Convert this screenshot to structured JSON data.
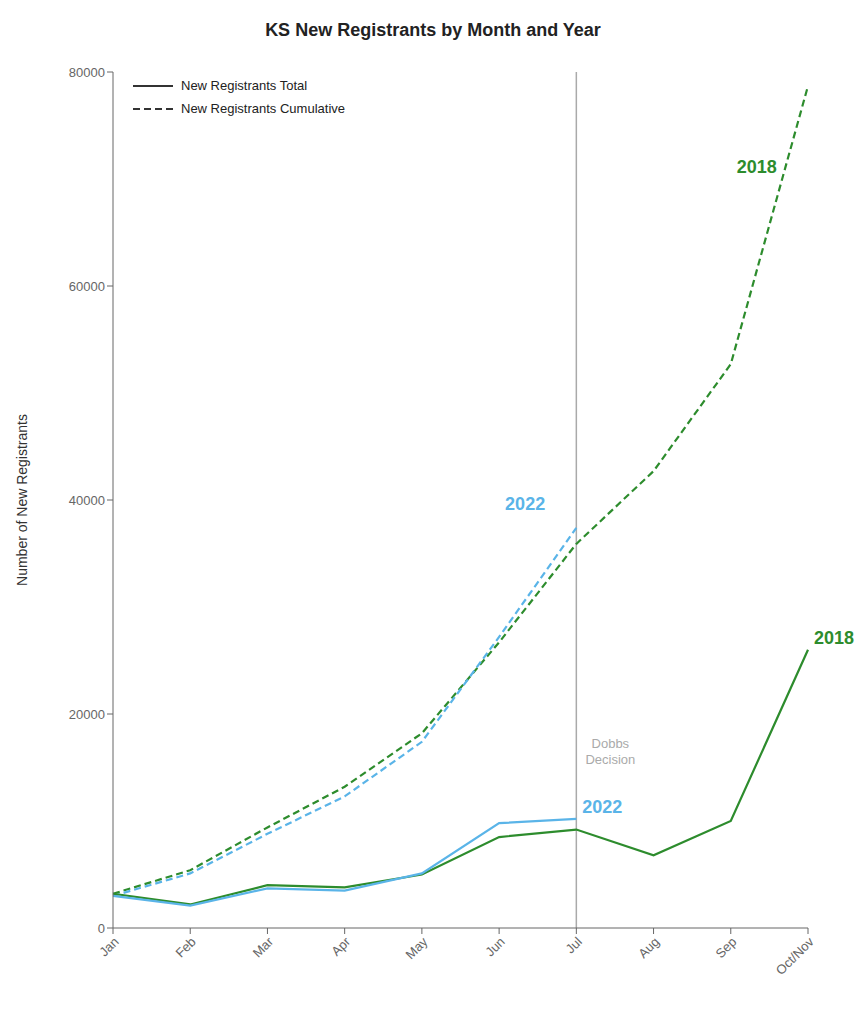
{
  "chart_data": {
    "type": "line",
    "title": "KS New Registrants by Month and Year",
    "y_label": "Number of New Registrants",
    "categories": [
      "Jan",
      "Feb",
      "Mar",
      "Apr",
      "May",
      "Jun",
      "Jul",
      "Aug",
      "Sep",
      "Oct/Nov"
    ],
    "series": [
      {
        "color": "#2d8c2d",
        "line_style": "dashed",
        "values": [
          3200,
          5400,
          9400,
          13200,
          18200,
          26700,
          35900,
          42700,
          52700,
          78700
        ]
      },
      {
        "color": "#5ab4e8",
        "line_style": "dashed",
        "values": [
          3000,
          5100,
          8800,
          12300,
          17400,
          27200,
          37400,
          null,
          null,
          null
        ]
      },
      {
        "color": "#2d8c2d",
        "line_style": "solid",
        "values": [
          3200,
          2200,
          4000,
          3800,
          5000,
          8500,
          9200,
          6800,
          10000,
          26000
        ]
      },
      {
        "color": "#5ab4e8",
        "line_style": "solid",
        "values": [
          3000,
          2100,
          3700,
          3500,
          5100,
          9800,
          10200,
          null,
          null,
          null
        ]
      }
    ],
    "ylim": [
      0,
      80000
    ],
    "yticks": [
      0,
      20000,
      40000,
      60000,
      80000
    ],
    "grid": false,
    "legend": "upper left",
    "legend_entries": [
      {
        "label": "New Registrants Total",
        "color": "#333333",
        "line_style": "solid"
      },
      {
        "label": "New Registrants Cumulative",
        "color": "#333333",
        "line_style": "dashed"
      }
    ],
    "vline": {
      "x": "Jul",
      "color": "#aaaaaa",
      "label": "Dobbs\nDecision",
      "label_y": 18000
    },
    "annotations": [
      {
        "text": "2018",
        "x": "Oct/Nov",
        "y": 26000,
        "color": "#2d8c2d"
      },
      {
        "text": "2022",
        "x": "Jul",
        "y": 10200,
        "color": "#5ab4e8"
      },
      {
        "text": "2018",
        "x": "Sep",
        "y": 70000,
        "color": "#2d8c2d"
      },
      {
        "text": "2022",
        "x": "Jun",
        "y": 38500,
        "color": "#5ab4e8"
      }
    ]
  }
}
